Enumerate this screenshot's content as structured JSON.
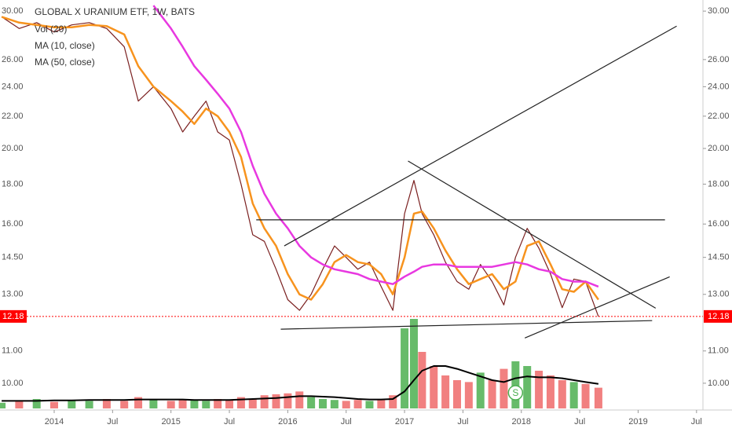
{
  "chart_data": {
    "type": "line",
    "title": "GLOBAL X URANIUM ETF, 1W, BATS",
    "indicators": [
      "Vol (20)",
      "MA (10, close)",
      "MA (50, close)"
    ],
    "log_scale": true,
    "xlim": [
      2013.536,
      2019.555
    ],
    "xticks": [
      {
        "value": 2014,
        "label": "2014"
      },
      {
        "value": 2014.5,
        "label": "Jul"
      },
      {
        "value": 2015,
        "label": "2015"
      },
      {
        "value": 2015.5,
        "label": "Jul"
      },
      {
        "value": 2016,
        "label": "2016"
      },
      {
        "value": 2016.5,
        "label": "Jul"
      },
      {
        "value": 2017,
        "label": "2017"
      },
      {
        "value": 2017.5,
        "label": "Jul"
      },
      {
        "value": 2018,
        "label": "2018"
      },
      {
        "value": 2018.5,
        "label": "Jul"
      },
      {
        "value": 2019,
        "label": "2019"
      },
      {
        "value": 2019.5,
        "label": "Jul"
      }
    ],
    "ylim": [
      9.24,
      31.0
    ],
    "yticks": [
      {
        "value": 10,
        "label": "10.00"
      },
      {
        "value": 11,
        "label": "11.00"
      },
      {
        "value": 13,
        "label": "13.00"
      },
      {
        "value": 14.5,
        "label": "14.50"
      },
      {
        "value": 16,
        "label": "16.00"
      },
      {
        "value": 18,
        "label": "18.00"
      },
      {
        "value": 20,
        "label": "20.00"
      },
      {
        "value": 22,
        "label": "22.00"
      },
      {
        "value": 24,
        "label": "24.00"
      },
      {
        "value": 26,
        "label": "26.00"
      },
      {
        "value": 30,
        "label": "30.00"
      }
    ],
    "last_price": {
      "value": 12.18,
      "label": "12.18",
      "color": "#ff0000"
    },
    "x": [
      2013.55,
      2013.7,
      2013.85,
      2014.0,
      2014.15,
      2014.3,
      2014.45,
      2014.6,
      2014.72,
      2014.85,
      2015.0,
      2015.1,
      2015.2,
      2015.3,
      2015.4,
      2015.5,
      2015.6,
      2015.7,
      2015.8,
      2015.9,
      2016.0,
      2016.1,
      2016.2,
      2016.3,
      2016.4,
      2016.5,
      2016.6,
      2016.7,
      2016.8,
      2016.9,
      2017.0,
      2017.08,
      2017.15,
      2017.25,
      2017.35,
      2017.45,
      2017.55,
      2017.65,
      2017.75,
      2017.85,
      2017.95,
      2018.05,
      2018.15,
      2018.25,
      2018.35,
      2018.45,
      2018.55,
      2018.66
    ],
    "series": [
      {
        "color": "#7a1f1f",
        "values": [
          29.5,
          28.5,
          29,
          28.2,
          28.8,
          29,
          28.5,
          27,
          23,
          24,
          22.5,
          21,
          22,
          23,
          21,
          20.5,
          18,
          15.5,
          15.2,
          14,
          12.8,
          12.4,
          13,
          14,
          15,
          14.5,
          14,
          14.3,
          13.3,
          12.4,
          16.5,
          18.2,
          16.5,
          15.5,
          14.3,
          13.5,
          13.2,
          14.2,
          13.5,
          12.6,
          14.5,
          15.8,
          14.9,
          13.8,
          12.5,
          13.6,
          13.5,
          12.18
        ]
      },
      {
        "color": "#f7931e",
        "values": [
          29.5,
          29,
          28.8,
          28.6,
          28.6,
          28.8,
          28.7,
          28,
          25.5,
          24,
          23,
          22.3,
          21.5,
          22.5,
          22,
          21,
          19.5,
          17,
          15.8,
          15,
          13.8,
          13,
          12.8,
          13.4,
          14.3,
          14.6,
          14.3,
          14.2,
          13.8,
          13,
          14.5,
          16.5,
          16.6,
          15.8,
          14.8,
          14,
          13.4,
          13.6,
          13.8,
          13.2,
          13.5,
          15,
          15.2,
          14.2,
          13.2,
          13.1,
          13.5,
          12.8
        ]
      },
      {
        "color": "#e838e0",
        "values": [
          null,
          null,
          null,
          null,
          null,
          null,
          null,
          null,
          null,
          30.5,
          28.5,
          27,
          25.5,
          24.5,
          23.5,
          22.5,
          21,
          19,
          17.5,
          16.5,
          15.8,
          15,
          14.5,
          14.2,
          14,
          13.9,
          13.8,
          13.6,
          13.5,
          13.4,
          13.7,
          13.9,
          14.1,
          14.2,
          14.2,
          14.1,
          14.1,
          14.1,
          14.1,
          14.2,
          14.3,
          14.2,
          14,
          13.9,
          13.6,
          13.5,
          13.5,
          13.3
        ]
      }
    ],
    "volume": {
      "up_color": "#4caf50",
      "down_color": "#ef6a6a",
      "ma_color": "#000000",
      "vlim": [
        0,
        100
      ],
      "values": [
        6,
        8,
        10,
        7,
        9,
        8,
        10,
        8,
        12,
        9,
        8,
        10,
        9,
        8,
        10,
        9,
        12,
        10,
        14,
        15,
        16,
        18,
        12,
        10,
        9,
        8,
        9,
        8,
        10,
        14,
        85,
        95,
        60,
        45,
        35,
        30,
        28,
        38,
        30,
        42,
        50,
        45,
        40,
        35,
        30,
        28,
        26,
        22
      ],
      "ma": [
        8,
        8,
        8,
        8.5,
        8.5,
        9,
        9,
        9,
        9.5,
        9.5,
        9.5,
        9.5,
        9,
        9,
        9,
        9,
        9.5,
        10,
        10.5,
        11,
        12,
        13,
        13,
        12.5,
        12,
        11,
        10,
        9.5,
        9.5,
        10,
        18,
        30,
        40,
        45,
        45,
        42,
        38,
        34,
        30,
        28,
        32,
        34,
        33,
        33,
        32,
        30,
        28,
        26
      ]
    },
    "marker": {
      "x": 2017.95,
      "label": "S"
    },
    "trendlines": [
      {
        "x": [
          2015.73,
          2019.23
        ],
        "y": [
          16.2,
          16.2
        ]
      },
      {
        "x": [
          2015.94,
          2019.12
        ],
        "y": [
          11.73,
          12.03
        ]
      },
      {
        "x": [
          2015.97,
          2019.33
        ],
        "y": [
          15.0,
          28.7
        ]
      },
      {
        "x": [
          2017.03,
          2019.15
        ],
        "y": [
          19.27,
          12.48
        ]
      },
      {
        "x": [
          2018.03,
          2019.27
        ],
        "y": [
          11.43,
          13.69
        ]
      }
    ]
  }
}
